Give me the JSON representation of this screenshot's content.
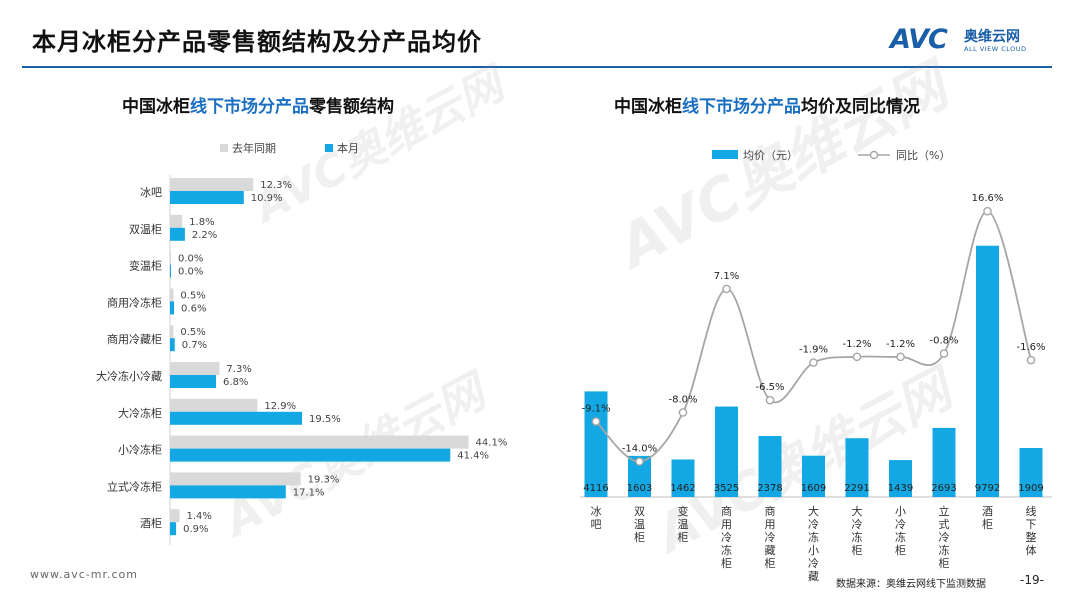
{
  "page": {
    "title": "本月冰柜分产品零售额结构及分产品均价",
    "footer_url": "www.avc-mr.com",
    "source": "数据来源：奥维云网线下监测数据",
    "page_number": "-19-"
  },
  "logo": {
    "mark": "AVC",
    "cn": "奥维云网",
    "en": "ALL VIEW CLOUD"
  },
  "watermark": {
    "mark": "AVC",
    "cn": "奥维云网",
    "en": "ALL VIEW CLOUD"
  },
  "colors": {
    "accent": "#1a5ea8",
    "bar_current": "#13a8e3",
    "bar_last_year": "#d9d9d9",
    "line": "#a6a6a6"
  },
  "left_chart_title": {
    "pre": "中国冰柜",
    "highlight": "线下市场分产品",
    "post": "零售额结构"
  },
  "right_chart_title": {
    "pre": "中国冰柜",
    "highlight": "线下市场分产品",
    "post": "均价及同比情况"
  },
  "chart_data": [
    {
      "type": "bar",
      "orientation": "horizontal",
      "categories": [
        "冰吧",
        "双温柜",
        "变温柜",
        "商用冷冻柜",
        "商用冷藏柜",
        "大冷冻小冷藏",
        "大冷冻柜",
        "小冷冻柜",
        "立式冷冻柜",
        "酒柜"
      ],
      "series": [
        {
          "name": "去年同期",
          "values": [
            12.3,
            1.8,
            0.0,
            0.5,
            0.5,
            7.3,
            12.9,
            44.1,
            19.3,
            1.4
          ]
        },
        {
          "name": "本月",
          "values": [
            10.9,
            2.2,
            0.0,
            0.6,
            0.7,
            6.8,
            19.5,
            41.4,
            17.1,
            0.9
          ]
        }
      ],
      "value_suffix": "%",
      "legend_position": "top",
      "grid": false
    },
    {
      "type": "bar",
      "categories": [
        "冰吧",
        "双温柜",
        "变温柜",
        "商用冷冻柜",
        "商用冷藏柜",
        "大冷冻小冷藏",
        "大冷冻柜",
        "小冷冻柜",
        "立式冷冻柜",
        "酒柜",
        "线下整体"
      ],
      "series": [
        {
          "name": "均价（元）",
          "type": "bar",
          "values": [
            4116,
            1603,
            1462,
            3525,
            2378,
            1609,
            2291,
            1439,
            2693,
            9792,
            1909
          ]
        },
        {
          "name": "同比（%）",
          "type": "line",
          "values": [
            -9.1,
            -14.0,
            -8.0,
            7.1,
            -6.5,
            -1.9,
            -1.2,
            -1.2,
            -0.8,
            16.6,
            -1.6
          ]
        }
      ],
      "legend_position": "top",
      "grid": false
    }
  ]
}
